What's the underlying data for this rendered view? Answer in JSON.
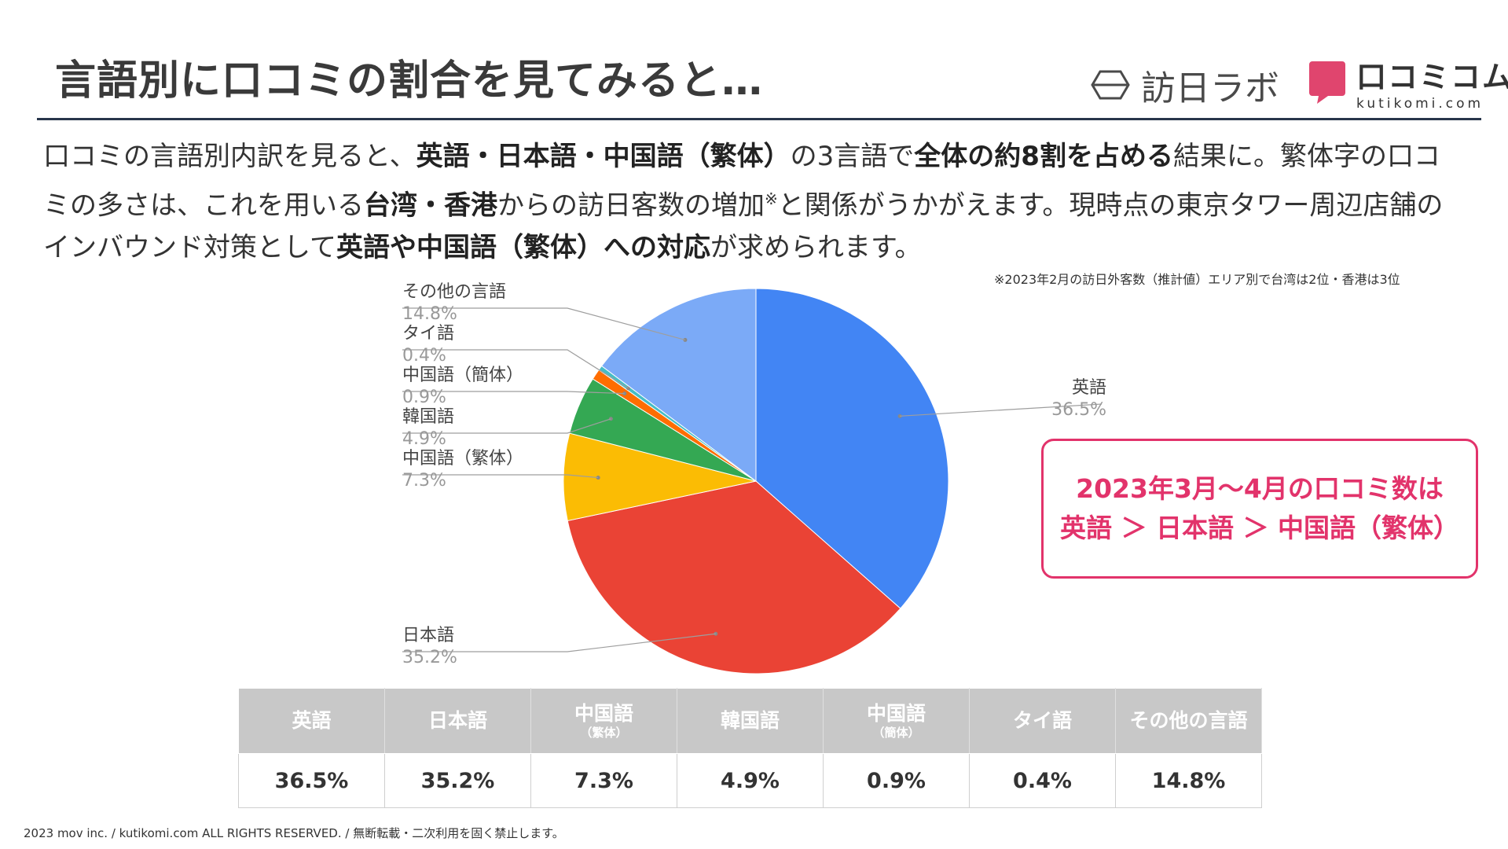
{
  "title": "言語別に口コミの割合を見てみると…",
  "logos": {
    "houjin_name": "訪日ラボ",
    "kutikomi_name": "口コミコム",
    "kutikomi_domain": "kutikomi.com"
  },
  "intro": {
    "p1": "口コミの言語別内訳を見ると、",
    "b1": "英語・日本語・中国語（繁体）",
    "p2": "の3言語で",
    "b2": "全体の約8割を占める",
    "p3": "結果に。繁体字の口コミの多さは、これを用いる",
    "b3": "台湾・香港",
    "p4": "からの訪日客数の増加",
    "mark": "※",
    "p5": "と関係がうかがえます。現時点の東京タワー周辺店舗のインバウンド対策として",
    "b4": "英語や中国語（繁体）への対応",
    "p6": "が求められます。"
  },
  "footnote": "※2023年2月の訪日外客数（推計値）エリア別で台湾は2位・香港は3位",
  "callout": {
    "line1": "2023年3月～4月の口コミ数は",
    "line2": "英語 ＞ 日本語 ＞ 中国語（繁体）"
  },
  "chart_data": {
    "type": "pie",
    "title": "",
    "start_angle_deg": 0,
    "direction": "clockwise",
    "slices": [
      {
        "label": "英語",
        "value": 36.5,
        "display": "36.5%",
        "color": "#4285f4"
      },
      {
        "label": "日本語",
        "value": 35.2,
        "display": "35.2%",
        "color": "#ea4335"
      },
      {
        "label": "中国語（繁体）",
        "value": 7.3,
        "display": "7.3%",
        "color": "#fbbc04"
      },
      {
        "label": "韓国語",
        "value": 4.9,
        "display": "4.9%",
        "color": "#34a853"
      },
      {
        "label": "中国語（簡体）",
        "value": 0.9,
        "display": "0.9%",
        "color": "#ff6d01"
      },
      {
        "label": "タイ語",
        "value": 0.4,
        "display": "0.4%",
        "color": "#46bdc6"
      },
      {
        "label": "その他の言語",
        "value": 14.8,
        "display": "14.8%",
        "color": "#7baaf7"
      }
    ]
  },
  "table": {
    "headers": [
      {
        "main": "英語",
        "sub": ""
      },
      {
        "main": "日本語",
        "sub": ""
      },
      {
        "main": "中国語",
        "sub": "（繁体）"
      },
      {
        "main": "韓国語",
        "sub": ""
      },
      {
        "main": "中国語",
        "sub": "（簡体）"
      },
      {
        "main": "タイ語",
        "sub": ""
      },
      {
        "main": "その他の言語",
        "sub": ""
      }
    ],
    "values": [
      "36.5%",
      "35.2%",
      "7.3%",
      "4.9%",
      "0.9%",
      "0.4%",
      "14.8%"
    ]
  },
  "copyright": "2023 mov inc. / kutikomi.com ALL RIGHTS RESERVED. / 無断転載・二次利用を固く禁止します。"
}
